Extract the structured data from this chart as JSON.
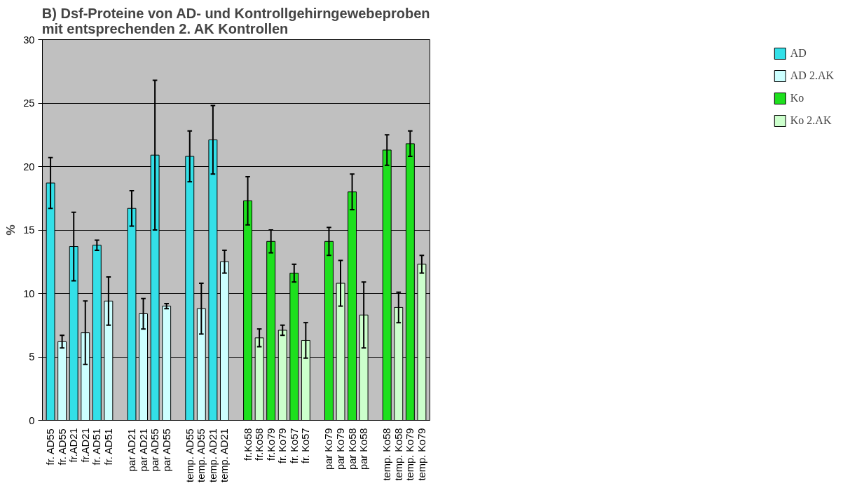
{
  "chart_data": {
    "type": "bar",
    "title": "B) Dsf-Proteine von AD- und Kontrollgehirngewebeproben mit entsprechenden 2. AK  Kontrollen",
    "ylabel": "%",
    "categories": [
      "fr. AD55",
      "fr. AD55",
      "fr.AD21",
      "fr.AD21",
      "fr. AD51",
      "fr. AD51",
      null,
      "par AD21",
      "par AD21",
      "par AD55",
      "par AD55",
      null,
      "temp. AD55",
      "temp. AD55",
      "temp. AD21",
      "temp. AD21",
      null,
      "fr.Ko58",
      "fr.Ko58",
      "fr.Ko79",
      "fr. Ko79",
      "fr. Ko57",
      "fr. Ko57",
      null,
      "par Ko79",
      "par Ko79",
      "par Ko58",
      "par Ko58",
      null,
      "temp. Ko58",
      "temp. Ko58",
      "temp. Ko79",
      "temp. Ko79"
    ],
    "series": [
      {
        "name": "AD",
        "color": "#33e0e8",
        "values": [
          18.7,
          null,
          13.7,
          null,
          13.8,
          null,
          null,
          16.7,
          null,
          20.9,
          null,
          null,
          20.8,
          null,
          22.1,
          null,
          null,
          null,
          null,
          null,
          null,
          null,
          null,
          null,
          null,
          null,
          null,
          null,
          null,
          null,
          null,
          null,
          null
        ],
        "errors": [
          2,
          null,
          2.7,
          null,
          0.4,
          null,
          null,
          1.4,
          null,
          5.9,
          null,
          null,
          2,
          null,
          2.7,
          null,
          null,
          null,
          null,
          null,
          null,
          null,
          null,
          null,
          null,
          null,
          null,
          null,
          null,
          null,
          null,
          null,
          null
        ]
      },
      {
        "name": "AD 2.AK",
        "color": "#ccffff",
        "values": [
          null,
          6.2,
          null,
          6.9,
          null,
          9.4,
          null,
          null,
          8.4,
          null,
          9.0,
          null,
          null,
          8.8,
          null,
          12.5,
          null,
          null,
          null,
          null,
          null,
          null,
          null,
          null,
          null,
          null,
          null,
          null,
          null,
          null,
          null,
          null,
          null
        ],
        "errors": [
          null,
          0.5,
          null,
          2.5,
          null,
          1.9,
          null,
          null,
          1.2,
          null,
          0.2,
          null,
          null,
          2,
          null,
          0.9,
          null,
          null,
          null,
          null,
          null,
          null,
          null,
          null,
          null,
          null,
          null,
          null,
          null,
          null,
          null,
          null,
          null
        ]
      },
      {
        "name": "Ko",
        "color": "#1ee01e",
        "values": [
          null,
          null,
          null,
          null,
          null,
          null,
          null,
          null,
          null,
          null,
          null,
          null,
          null,
          null,
          null,
          null,
          null,
          17.3,
          null,
          14.1,
          null,
          11.6,
          null,
          null,
          14.1,
          null,
          18.0,
          null,
          null,
          21.3,
          null,
          21.8,
          null
        ],
        "errors": [
          null,
          null,
          null,
          null,
          null,
          null,
          null,
          null,
          null,
          null,
          null,
          null,
          null,
          null,
          null,
          null,
          null,
          1.9,
          null,
          0.9,
          null,
          0.7,
          null,
          null,
          1.1,
          null,
          1.4,
          null,
          null,
          1.2,
          null,
          1,
          null
        ]
      },
      {
        "name": "Ko 2.AK",
        "color": "#ccffcc",
        "values": [
          null,
          null,
          null,
          null,
          null,
          null,
          null,
          null,
          null,
          null,
          null,
          null,
          null,
          null,
          null,
          null,
          null,
          null,
          6.5,
          null,
          7.1,
          null,
          6.3,
          null,
          null,
          10.8,
          null,
          8.3,
          null,
          null,
          8.9,
          null,
          12.3
        ],
        "errors": [
          null,
          null,
          null,
          null,
          null,
          null,
          null,
          null,
          null,
          null,
          null,
          null,
          null,
          null,
          null,
          null,
          null,
          null,
          0.7,
          null,
          0.4,
          null,
          1.4,
          null,
          null,
          1.8,
          null,
          2.6,
          null,
          null,
          1.2,
          null,
          0.7
        ]
      }
    ],
    "ylim": [
      0,
      30
    ],
    "yticks": [
      0,
      5,
      10,
      15,
      20,
      25,
      30
    ],
    "grid": "y",
    "legend": "right"
  }
}
